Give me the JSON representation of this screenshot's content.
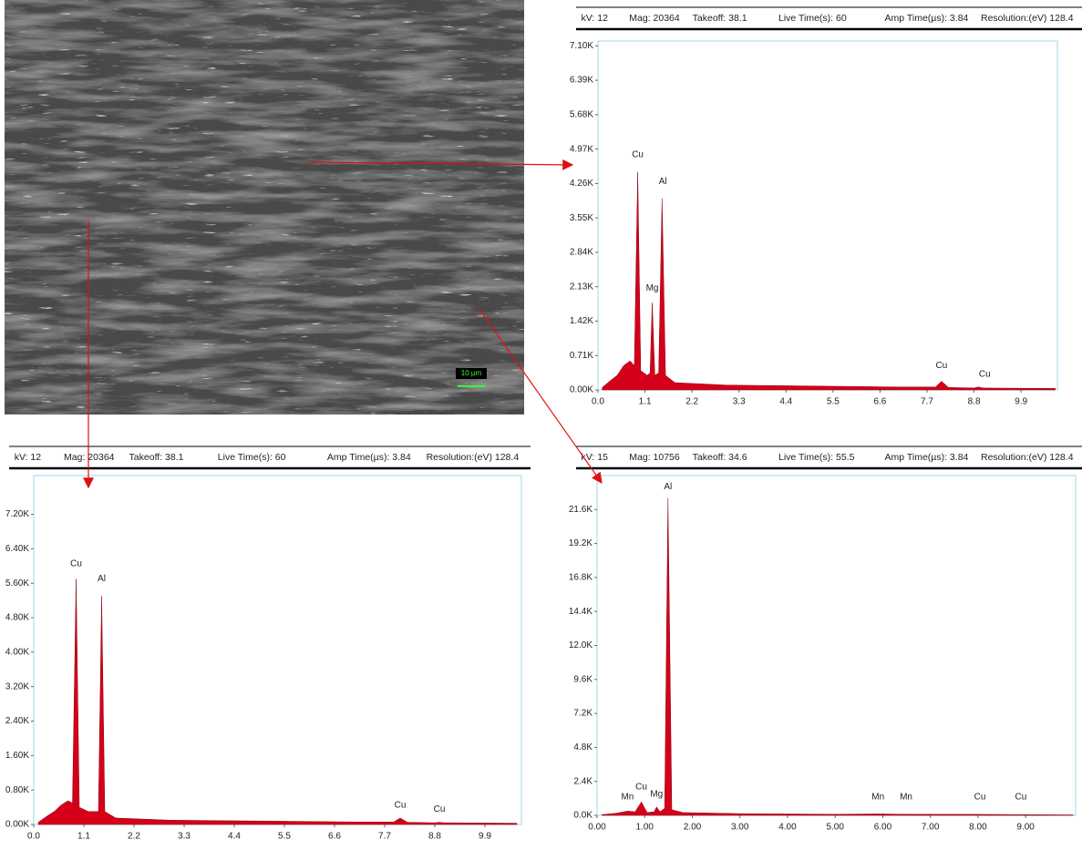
{
  "image": {
    "scale_label": "10 µm"
  },
  "chart_data": [
    {
      "type": "area",
      "color": "#d4001a",
      "header": [
        "kV: 12",
        "Mag: 20364",
        "Takeoff: 38.1",
        "Live Time(s): 60",
        "Amp Time(µs): 3.84",
        "Resolution:(eV) 128.4"
      ],
      "x": [
        0.1,
        0.3,
        0.45,
        0.6,
        0.75,
        0.85,
        0.93,
        1.0,
        1.15,
        1.22,
        1.27,
        1.33,
        1.42,
        1.5,
        1.58,
        1.8,
        3,
        5,
        7,
        7.9,
        8.04,
        8.2,
        8.8,
        8.9,
        9.0,
        10.7
      ],
      "values": [
        0.05,
        0.2,
        0.3,
        0.5,
        0.6,
        0.5,
        4.5,
        0.4,
        0.3,
        0.35,
        1.8,
        0.3,
        0.35,
        3.95,
        0.3,
        0.15,
        0.1,
        0.08,
        0.06,
        0.06,
        0.18,
        0.05,
        0.04,
        0.06,
        0.04,
        0.03
      ],
      "xlim": [
        0,
        10.75
      ],
      "ylim": [
        0,
        7.2
      ],
      "xticks": [
        {
          "value": 0,
          "label": "0.0"
        },
        1.1,
        2.2,
        3.3,
        4.4,
        5.5,
        6.6,
        7.7,
        8.8,
        9.9
      ],
      "yticks": [
        {
          "value": 0,
          "label": "0.00K"
        },
        {
          "value": 0.71,
          "label": "0.71K"
        },
        {
          "value": 1.42,
          "label": "1.42K"
        },
        {
          "value": 2.13,
          "label": "2.13K"
        },
        {
          "value": 2.84,
          "label": "2.84K"
        },
        {
          "value": 3.55,
          "label": "3.55K"
        },
        {
          "value": 4.26,
          "label": "4.26K"
        },
        {
          "value": 4.97,
          "label": "4.97K"
        },
        {
          "value": 5.68,
          "label": "5.68K"
        },
        {
          "value": 6.39,
          "label": "6.39K"
        },
        {
          "value": 7.1,
          "label": "7.10K"
        }
      ],
      "annotations": [
        {
          "text": "Cu",
          "x": 0.93,
          "y": 4.85
        },
        {
          "text": "Al",
          "x": 1.52,
          "y": 4.3
        },
        {
          "text": "Mg",
          "x": 1.27,
          "y": 2.1
        },
        {
          "text": "Cu",
          "x": 8.04,
          "y": 0.5
        },
        {
          "text": "Cu",
          "x": 9.05,
          "y": 0.32
        }
      ]
    },
    {
      "type": "area",
      "color": "#d4001a",
      "header": [
        "kV: 12",
        "Mag: 20364",
        "Takeoff: 38.1",
        "Live Time(s): 60",
        "Amp Time(µs): 3.84",
        "Resolution:(eV) 128.4"
      ],
      "x": [
        0.1,
        0.3,
        0.45,
        0.6,
        0.75,
        0.85,
        0.93,
        1.0,
        1.2,
        1.42,
        1.49,
        1.56,
        1.8,
        3,
        5,
        7,
        7.9,
        8.04,
        8.2,
        8.8,
        8.9,
        9.0,
        10.6
      ],
      "values": [
        0.05,
        0.2,
        0.3,
        0.45,
        0.55,
        0.5,
        5.7,
        0.4,
        0.3,
        0.3,
        5.3,
        0.3,
        0.15,
        0.1,
        0.08,
        0.06,
        0.06,
        0.15,
        0.05,
        0.04,
        0.05,
        0.04,
        0.03
      ],
      "xlim": [
        0,
        10.7
      ],
      "ylim": [
        0,
        8.1
      ],
      "xticks": [
        {
          "value": 0,
          "label": "0.0"
        },
        1.1,
        2.2,
        3.3,
        4.4,
        5.5,
        6.6,
        7.7,
        8.8,
        9.9
      ],
      "yticks": [
        {
          "value": 0,
          "label": "0.00K"
        },
        {
          "value": 0.8,
          "label": "0.80K"
        },
        {
          "value": 1.6,
          "label": "1.60K"
        },
        {
          "value": 2.4,
          "label": "2.40K"
        },
        {
          "value": 3.2,
          "label": "3.20K"
        },
        {
          "value": 4,
          "label": "4.00K"
        },
        {
          "value": 4.8,
          "label": "4.80K"
        },
        {
          "value": 5.6,
          "label": "5.60K"
        },
        {
          "value": 6.4,
          "label": "6.40K"
        },
        {
          "value": 7.2,
          "label": "7.20K"
        }
      ],
      "annotations": [
        {
          "text": "Cu",
          "x": 0.93,
          "y": 6.05
        },
        {
          "text": "Al",
          "x": 1.49,
          "y": 5.7
        },
        {
          "text": "Cu",
          "x": 8.04,
          "y": 0.45
        },
        {
          "text": "Cu",
          "x": 8.9,
          "y": 0.35
        }
      ]
    },
    {
      "type": "area",
      "color": "#d4001a",
      "header": [
        "kV: 15",
        "Mag: 10756",
        "Takeoff: 34.6",
        "Live Time(s): 55.5",
        "Amp Time(µs): 3.84",
        "Resolution:(eV) 128.4"
      ],
      "x": [
        0.1,
        0.4,
        0.64,
        0.8,
        0.93,
        1.05,
        1.2,
        1.25,
        1.32,
        1.42,
        1.49,
        1.57,
        1.8,
        3,
        5,
        5.9,
        6.49,
        8.04,
        8.9,
        10
      ],
      "values": [
        0.05,
        0.15,
        0.3,
        0.25,
        0.95,
        0.2,
        0.25,
        0.6,
        0.25,
        0.5,
        22.4,
        0.4,
        0.2,
        0.12,
        0.08,
        0.1,
        0.08,
        0.07,
        0.05,
        0.03
      ],
      "xlim": [
        0,
        10.05
      ],
      "ylim": [
        0,
        24
      ],
      "xticks": [
        {
          "value": 0,
          "label": "0.00"
        },
        {
          "value": 1,
          "label": "1.00"
        },
        {
          "value": 2,
          "label": "2.00"
        },
        {
          "value": 3,
          "label": "3.00"
        },
        {
          "value": 4,
          "label": "4.00"
        },
        {
          "value": 5,
          "label": "5.00"
        },
        {
          "value": 6,
          "label": "6.00"
        },
        {
          "value": 7,
          "label": "7.00"
        },
        {
          "value": 8,
          "label": "8.00"
        },
        {
          "value": 9,
          "label": "9.00"
        }
      ],
      "yticks": [
        {
          "value": 0,
          "label": "0.0K"
        },
        {
          "value": 2.4,
          "label": "2.4K"
        },
        {
          "value": 4.8,
          "label": "4.8K"
        },
        {
          "value": 7.2,
          "label": "7.2K"
        },
        {
          "value": 9.6,
          "label": "9.6K"
        },
        {
          "value": 12,
          "label": "12.0K"
        },
        {
          "value": 14.4,
          "label": "14.4K"
        },
        {
          "value": 16.8,
          "label": "16.8K"
        },
        {
          "value": 19.2,
          "label": "19.2K"
        },
        {
          "value": 21.6,
          "label": "21.6K"
        }
      ],
      "annotations": [
        {
          "text": "Mn",
          "x": 0.64,
          "y": 1.3
        },
        {
          "text": "Cu",
          "x": 0.93,
          "y": 2.0
        },
        {
          "text": "Mg",
          "x": 1.25,
          "y": 1.5
        },
        {
          "text": "Al",
          "x": 1.49,
          "y": 23.2
        },
        {
          "text": "Mn",
          "x": 5.9,
          "y": 1.3
        },
        {
          "text": "Mn",
          "x": 6.49,
          "y": 1.3
        },
        {
          "text": "Cu",
          "x": 8.04,
          "y": 1.3
        },
        {
          "text": "Cu",
          "x": 8.9,
          "y": 1.3
        }
      ]
    }
  ]
}
